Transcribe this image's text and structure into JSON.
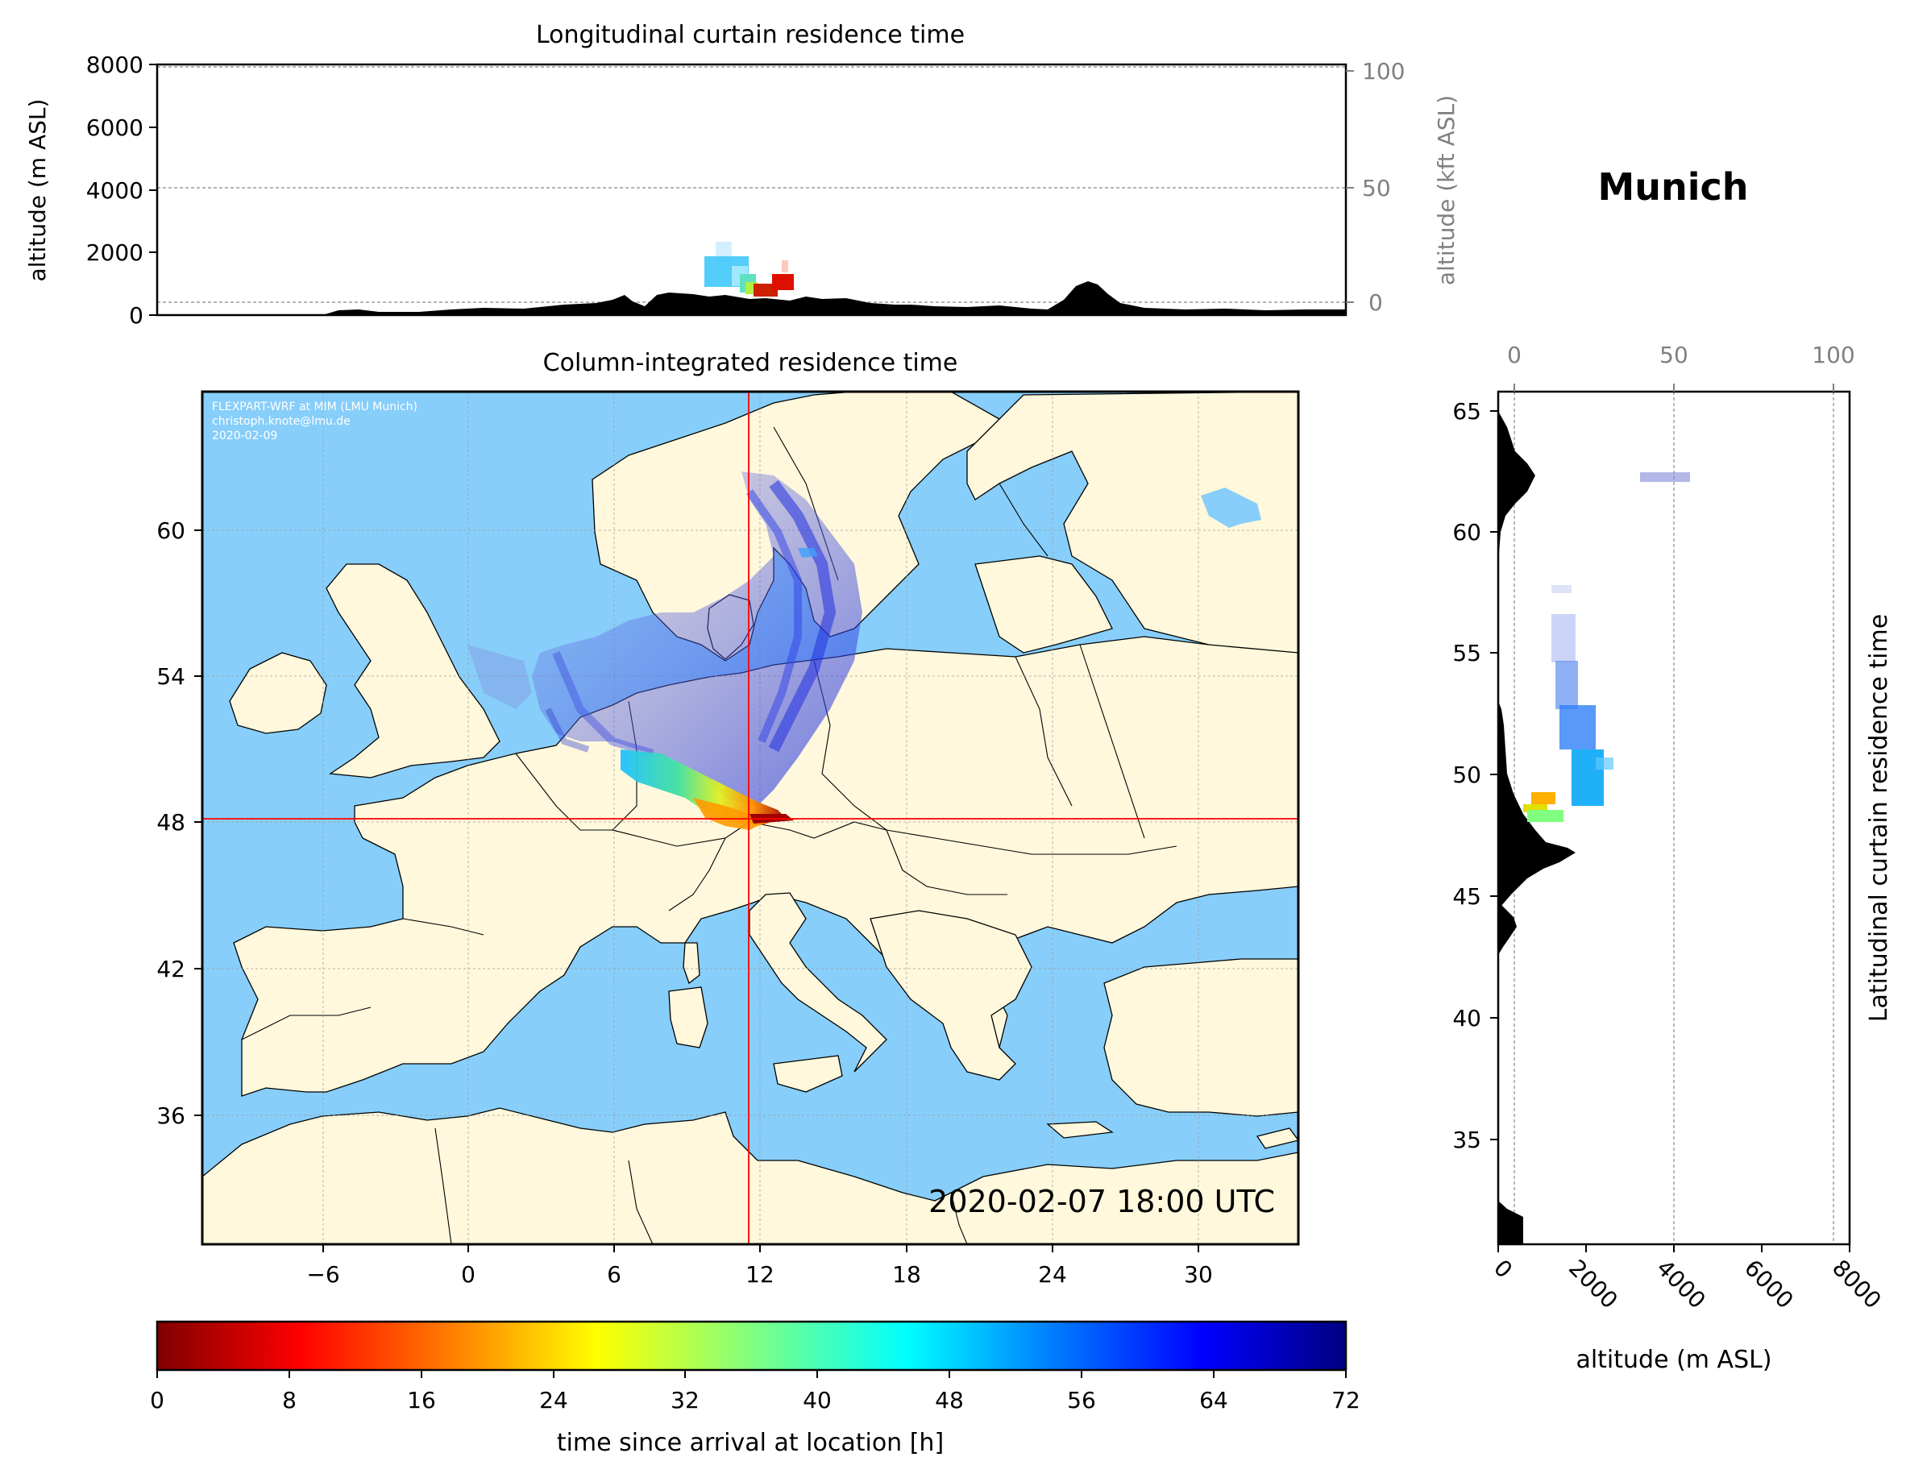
{
  "location_title": "Munich",
  "top_panel": {
    "title": "Longitudinal curtain residence time",
    "ylabel": "altitude (m ASL)",
    "ylabel_right": "altitude (kft ASL)",
    "yticks": [
      "0",
      "2000",
      "4000",
      "6000",
      "8000"
    ],
    "yticks_right": [
      "0",
      "50",
      "100"
    ]
  },
  "map_panel": {
    "title": "Column-integrated residence time",
    "credit_line1": "FLEXPART-WRF at MIM (LMU Munich)",
    "credit_line2": "christoph.knote@lmu.de",
    "credit_line3": "2020-02-09",
    "timestamp": "2020-02-07 18:00 UTC",
    "xticks": [
      "−6",
      "0",
      "6",
      "12",
      "18",
      "24",
      "30"
    ],
    "yticks": [
      "60",
      "54",
      "48",
      "42",
      "36"
    ],
    "colors": {
      "sea": "#87cefa",
      "land": "#fff8dc",
      "marker": "#ff0000"
    }
  },
  "right_panel": {
    "ylabel": "Latitudinal curtain residence time",
    "xlabel": "altitude (m ASL)",
    "xticks": [
      "0",
      "2000",
      "4000",
      "6000",
      "8000"
    ],
    "xticks_top": [
      "0",
      "50",
      "100"
    ],
    "yticks": [
      "65",
      "60",
      "55",
      "50",
      "45",
      "40",
      "35"
    ]
  },
  "colorbar": {
    "label": "time since arrival at location [h]",
    "ticks": [
      "0",
      "8",
      "16",
      "24",
      "32",
      "40",
      "48",
      "56",
      "64",
      "72"
    ],
    "colormap": "jet_r"
  }
}
